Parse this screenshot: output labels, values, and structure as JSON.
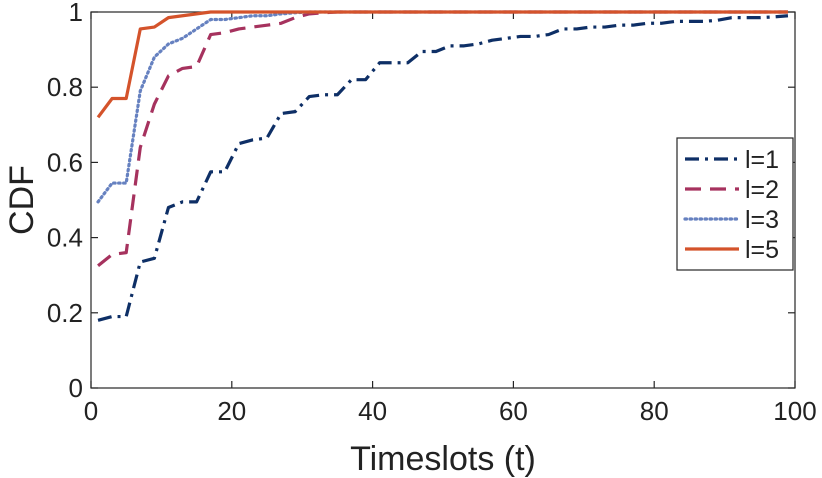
{
  "chart_data": {
    "type": "line",
    "title": "",
    "xlabel": "Timeslots (t)",
    "ylabel": "CDF",
    "xlim": [
      0,
      100
    ],
    "ylim": [
      0,
      1
    ],
    "xticks": [
      0,
      20,
      40,
      60,
      80,
      100
    ],
    "yticks": [
      0,
      0.2,
      0.4,
      0.6,
      0.8,
      1
    ],
    "xtick_labels": [
      "0",
      "20",
      "40",
      "60",
      "80",
      "100"
    ],
    "ytick_labels": [
      "0",
      "0.2",
      "0.4",
      "0.6",
      "0.8",
      "1"
    ],
    "grid": false,
    "legend_position": "right",
    "series": [
      {
        "name": "l=1",
        "color": "#0e2f66",
        "style": "dash-dot",
        "x": [
          1,
          3,
          5,
          7,
          9,
          11,
          13,
          15,
          17,
          19,
          21,
          23,
          25,
          27,
          29,
          31,
          33,
          35,
          37,
          39,
          41,
          43,
          45,
          47,
          49,
          51,
          53,
          55,
          57,
          59,
          61,
          63,
          65,
          67,
          69,
          71,
          73,
          75,
          77,
          79,
          81,
          83,
          85,
          87,
          89,
          91,
          93,
          95,
          97,
          99
        ],
        "values": [
          0.18,
          0.19,
          0.19,
          0.335,
          0.345,
          0.48,
          0.495,
          0.495,
          0.575,
          0.575,
          0.65,
          0.66,
          0.665,
          0.73,
          0.735,
          0.775,
          0.78,
          0.78,
          0.82,
          0.82,
          0.865,
          0.865,
          0.865,
          0.895,
          0.895,
          0.91,
          0.91,
          0.915,
          0.925,
          0.93,
          0.935,
          0.935,
          0.94,
          0.955,
          0.955,
          0.96,
          0.96,
          0.965,
          0.965,
          0.97,
          0.97,
          0.975,
          0.975,
          0.975,
          0.978,
          0.985,
          0.985,
          0.985,
          0.987,
          0.99
        ]
      },
      {
        "name": "l=2",
        "color": "#a6325e",
        "style": "dashed",
        "x": [
          1,
          3,
          5,
          7,
          9,
          11,
          13,
          15,
          17,
          19,
          21,
          23,
          25,
          27,
          29,
          31,
          33,
          35,
          45,
          99
        ],
        "values": [
          0.325,
          0.355,
          0.36,
          0.64,
          0.755,
          0.83,
          0.85,
          0.855,
          0.94,
          0.945,
          0.955,
          0.96,
          0.965,
          0.97,
          0.985,
          0.995,
          0.998,
          1.0,
          1.0,
          1.0
        ]
      },
      {
        "name": "l=3",
        "color": "#6681c0",
        "style": "dotted",
        "x": [
          1,
          3,
          5,
          7,
          9,
          11,
          13,
          15,
          17,
          19,
          21,
          23,
          25,
          27,
          29,
          31,
          99
        ],
        "values": [
          0.495,
          0.545,
          0.545,
          0.79,
          0.88,
          0.915,
          0.93,
          0.955,
          0.98,
          0.98,
          0.985,
          0.99,
          0.99,
          0.995,
          0.998,
          1.0,
          1.0
        ]
      },
      {
        "name": "l=5",
        "color": "#d4532b",
        "style": "solid",
        "x": [
          1,
          3,
          5,
          7,
          9,
          11,
          13,
          15,
          17,
          99
        ],
        "values": [
          0.72,
          0.77,
          0.77,
          0.955,
          0.96,
          0.985,
          0.99,
          0.995,
          1.0,
          1.0
        ]
      }
    ]
  }
}
